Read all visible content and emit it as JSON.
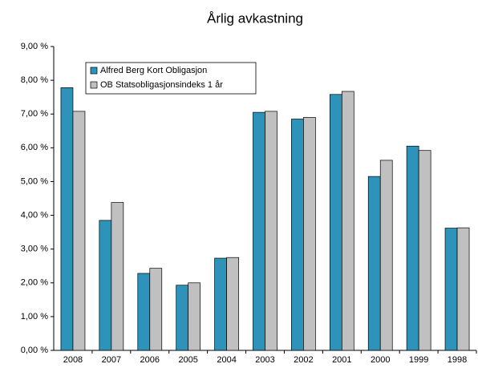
{
  "chart_data": {
    "type": "bar",
    "title": "Årlig avkastning",
    "categories": [
      "2008",
      "2007",
      "2006",
      "2005",
      "2004",
      "2003",
      "2002",
      "2001",
      "2000",
      "1999",
      "1998"
    ],
    "series": [
      {
        "name": "Alfred Berg Kort Obligasjon",
        "color": "#2e93b8",
        "values": [
          7.78,
          3.85,
          2.28,
          1.93,
          2.73,
          7.05,
          6.85,
          7.58,
          5.15,
          6.05,
          3.62
        ]
      },
      {
        "name": "OB Statsobligasjonsindeks 1 år",
        "color": "#c0c0c0",
        "values": [
          7.08,
          4.38,
          2.43,
          2.0,
          2.75,
          7.08,
          6.9,
          7.67,
          5.63,
          5.92,
          3.63
        ]
      }
    ],
    "ylim": [
      0,
      9
    ],
    "yticks": [
      {
        "value": 0,
        "label": "0,00 %"
      },
      {
        "value": 1,
        "label": "1,00 %"
      },
      {
        "value": 2,
        "label": "2,00 %"
      },
      {
        "value": 3,
        "label": "3,00 %"
      },
      {
        "value": 4,
        "label": "4,00 %"
      },
      {
        "value": 5,
        "label": "5,00 %"
      },
      {
        "value": 6,
        "label": "6,00 %"
      },
      {
        "value": 7,
        "label": "7,00 %"
      },
      {
        "value": 8,
        "label": "8,00 %"
      },
      {
        "value": 9,
        "label": "9,00 %"
      }
    ],
    "grid": false,
    "legend": "upper left"
  }
}
